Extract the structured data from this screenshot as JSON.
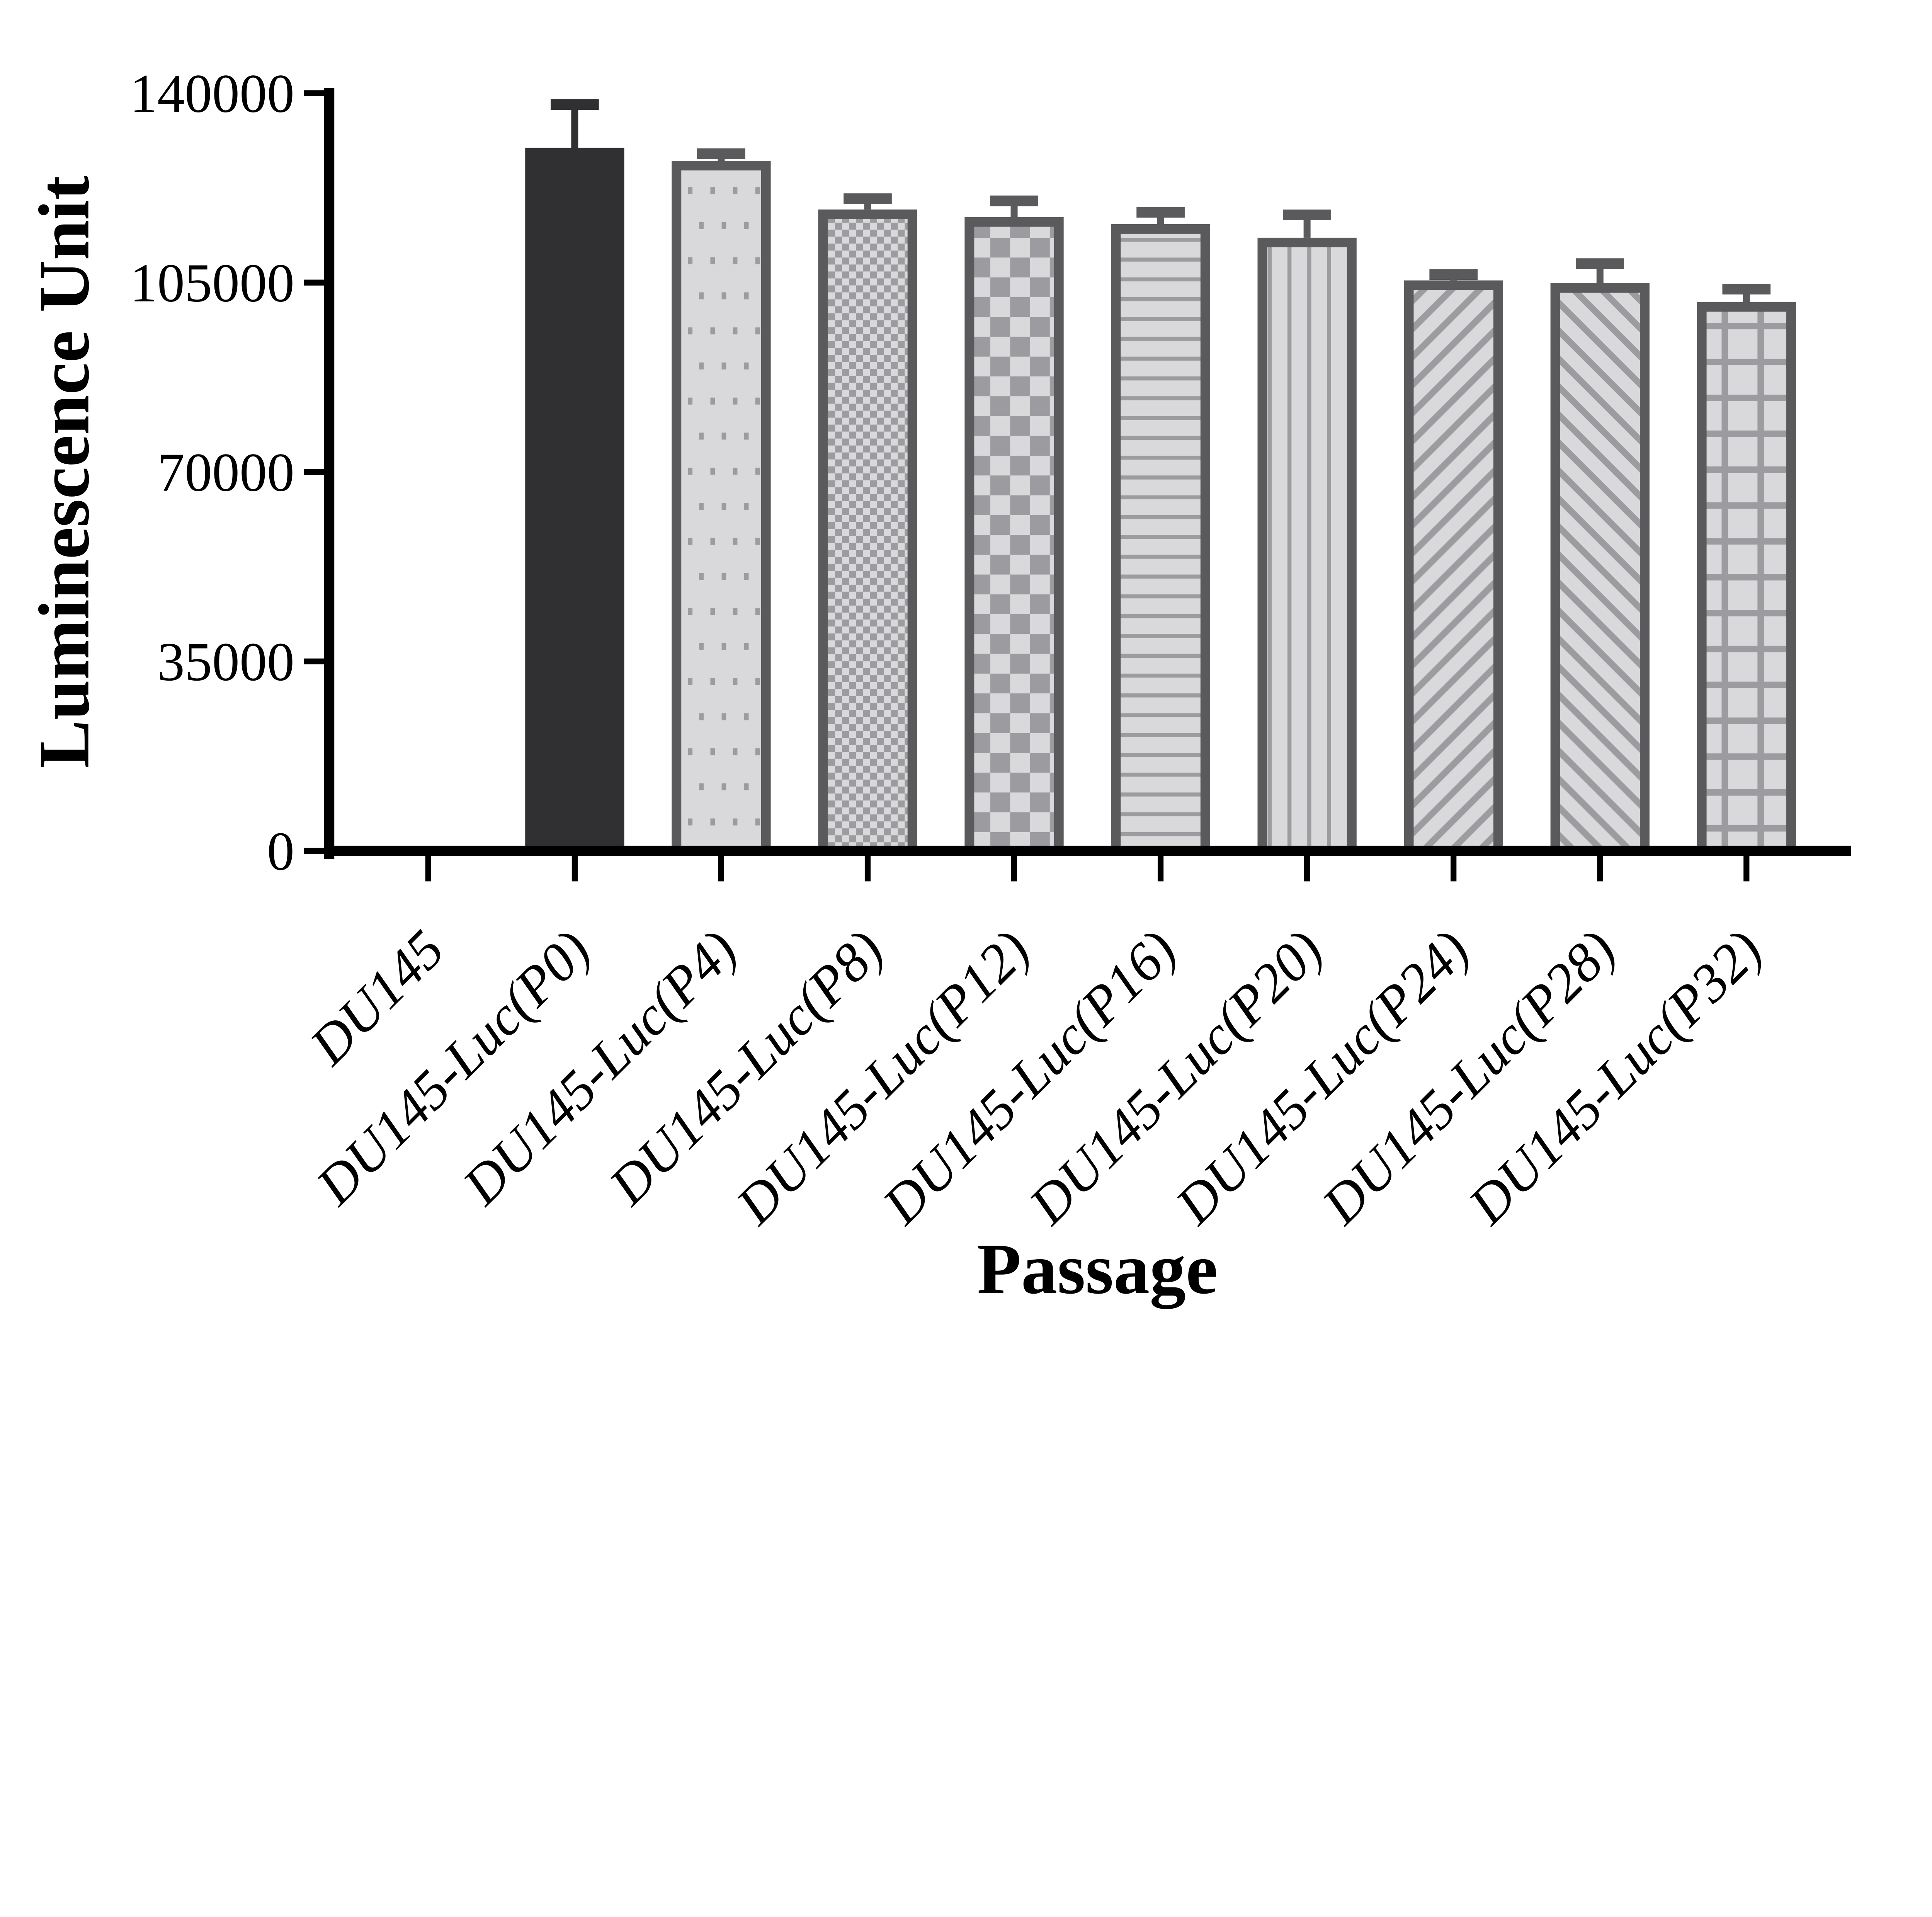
{
  "chart_data": {
    "type": "bar",
    "title": "",
    "xlabel": "Passage",
    "ylabel": "Luminescence Unit",
    "ylim": [
      0,
      140000
    ],
    "yticks": [
      0,
      35000,
      70000,
      105000,
      140000
    ],
    "categories": [
      "DU145",
      "DU145-Luc(P0)",
      "DU145-Luc(P4)",
      "DU145-Luc(P8)",
      "DU145-Luc(P12)",
      "DU145-Luc(P16)",
      "DU145-Luc(P20)",
      "DU145-Luc(P24)",
      "DU145-Luc(P28)",
      "DU145-Luc(P32)"
    ],
    "series": [
      {
        "name": "Luminescence Unit",
        "values": [
          0,
          129900,
          127500,
          118500,
          117100,
          115800,
          113300,
          105400,
          104900,
          101400
        ],
        "errors_sd": [
          0,
          8000,
          1300,
          2000,
          3000,
          2200,
          4200,
          1100,
          3600,
          2400
        ]
      }
    ],
    "bar_patterns": [
      "none",
      "solid",
      "dots",
      "checker-fine",
      "checker-coarse",
      "hlines",
      "vlines",
      "diag-forward",
      "diag-backward",
      "grid"
    ],
    "legend": "none",
    "grid": "off",
    "error_bars": "upper-only-with-cap",
    "colors": {
      "background": "#ffffff",
      "axis": "#000000",
      "text": "#000000",
      "bar_dark": "#303032",
      "bar_border": "#5a5a5c",
      "pattern_gray": "#9c9ca0",
      "bar_light": "#d9d9db"
    }
  }
}
